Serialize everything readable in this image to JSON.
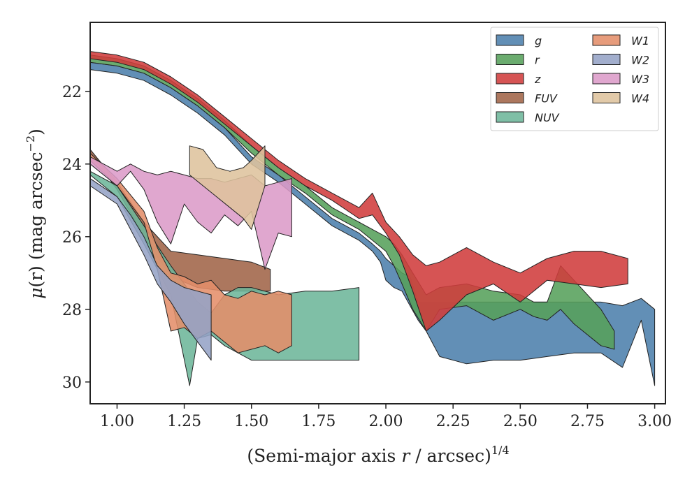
{
  "chart_data": {
    "type": "area",
    "title": "",
    "xlabel": {
      "main": "(Semi-major axis ",
      "var": "r",
      "unit": " / arcsec)",
      "sup": "1/4"
    },
    "ylabel": {
      "mu": "μ",
      "main": "(r) (mag arcsec",
      "sup": "−2",
      "close": ")"
    },
    "xlim": [
      0.9,
      3.04
    ],
    "ylim": [
      30.6,
      20.1
    ],
    "y_inverted": true,
    "xticks": [
      1.0,
      1.25,
      1.5,
      1.75,
      2.0,
      2.25,
      2.5,
      2.75,
      3.0
    ],
    "xtick_labels": [
      "1.00",
      "1.25",
      "1.50",
      "1.75",
      "2.00",
      "2.25",
      "2.50",
      "2.75",
      "3.00"
    ],
    "yticks": [
      22,
      24,
      26,
      28,
      30
    ],
    "ytick_labels": [
      "22",
      "24",
      "26",
      "28",
      "30"
    ],
    "grid": false,
    "legend_placement": "top-right",
    "legend_columns": 2,
    "series": [
      {
        "name": "g",
        "color": "#4c7fac",
        "x": [
          0.9,
          1.0,
          1.1,
          1.2,
          1.3,
          1.4,
          1.5,
          1.6,
          1.7,
          1.8,
          1.9,
          1.95,
          1.98,
          2.0,
          2.03,
          2.06,
          2.09,
          2.12,
          2.15,
          2.2,
          2.3,
          2.4,
          2.5,
          2.6,
          2.7,
          2.8,
          2.88,
          2.95,
          3.0
        ],
        "y_upper": [
          21.2,
          21.3,
          21.5,
          21.9,
          22.4,
          23.0,
          23.8,
          24.3,
          24.9,
          25.5,
          25.9,
          26.2,
          26.4,
          26.6,
          26.8,
          27.0,
          27.1,
          27.8,
          27.8,
          27.8,
          27.8,
          27.8,
          27.8,
          27.8,
          27.8,
          27.8,
          27.9,
          27.7,
          28.0
        ],
        "y_lower": [
          21.4,
          21.5,
          21.7,
          22.1,
          22.6,
          23.2,
          24.0,
          24.5,
          25.1,
          25.7,
          26.1,
          26.4,
          26.7,
          27.2,
          27.4,
          27.5,
          27.9,
          28.3,
          28.6,
          29.3,
          29.5,
          29.4,
          29.4,
          29.3,
          29.2,
          29.2,
          29.6,
          28.3,
          30.1
        ]
      },
      {
        "name": "r",
        "color": "#56a15b",
        "x": [
          0.9,
          1.0,
          1.1,
          1.2,
          1.3,
          1.4,
          1.5,
          1.6,
          1.7,
          1.8,
          1.9,
          1.95,
          2.0,
          2.03,
          2.06,
          2.1,
          2.15,
          2.2,
          2.3,
          2.4,
          2.5,
          2.55,
          2.6,
          2.65,
          2.7,
          2.8,
          2.85
        ],
        "y_upper": [
          21.0,
          21.1,
          21.3,
          21.7,
          22.2,
          22.8,
          23.5,
          24.1,
          24.6,
          25.2,
          25.6,
          25.8,
          26.0,
          26.2,
          26.5,
          27.0,
          27.6,
          27.4,
          27.3,
          27.5,
          27.6,
          27.8,
          27.8,
          26.8,
          27.2,
          28.0,
          28.6
        ],
        "y_lower": [
          21.2,
          21.3,
          21.5,
          21.9,
          22.4,
          23.0,
          23.7,
          24.3,
          24.8,
          25.4,
          25.8,
          26.1,
          26.4,
          26.8,
          27.3,
          28.0,
          28.6,
          28.0,
          27.9,
          28.3,
          28.0,
          28.2,
          28.3,
          28.0,
          28.4,
          29.0,
          29.1
        ]
      },
      {
        "name": "z",
        "color": "#d03c3c",
        "x": [
          0.9,
          1.0,
          1.1,
          1.2,
          1.3,
          1.4,
          1.5,
          1.6,
          1.7,
          1.8,
          1.9,
          1.95,
          2.0,
          2.05,
          2.1,
          2.15,
          2.2,
          2.3,
          2.4,
          2.5,
          2.6,
          2.7,
          2.8,
          2.9
        ],
        "y_upper": [
          20.9,
          21.0,
          21.2,
          21.6,
          22.1,
          22.7,
          23.3,
          23.9,
          24.4,
          24.8,
          25.2,
          24.8,
          25.6,
          26.0,
          26.5,
          26.8,
          26.7,
          26.3,
          26.7,
          27.0,
          26.6,
          26.4,
          26.4,
          26.6
        ],
        "y_lower": [
          21.1,
          21.2,
          21.4,
          21.8,
          22.3,
          22.9,
          23.5,
          24.1,
          24.6,
          25.0,
          25.5,
          25.4,
          25.9,
          26.5,
          27.5,
          28.6,
          28.3,
          27.6,
          27.3,
          27.8,
          27.2,
          27.3,
          27.4,
          27.3
        ]
      },
      {
        "name": "FUV",
        "color": "#a06448",
        "x": [
          0.9,
          1.0,
          1.1,
          1.2,
          1.3,
          1.4,
          1.5,
          1.57
        ],
        "y_upper": [
          23.6,
          24.5,
          25.6,
          26.4,
          26.5,
          26.6,
          26.7,
          26.9
        ],
        "y_lower": [
          23.7,
          24.7,
          26.0,
          27.1,
          27.4,
          27.5,
          27.5,
          27.5
        ]
      },
      {
        "name": "NUV",
        "color": "#6db69a",
        "x": [
          0.9,
          1.0,
          1.1,
          1.2,
          1.27,
          1.3,
          1.35,
          1.4,
          1.45,
          1.5,
          1.6,
          1.7,
          1.8,
          1.9
        ],
        "y_upper": [
          24.2,
          24.6,
          25.7,
          26.8,
          27.5,
          27.8,
          28.1,
          27.6,
          27.4,
          27.4,
          27.6,
          27.5,
          27.5,
          27.4
        ],
        "y_lower": [
          24.3,
          24.9,
          26.2,
          27.6,
          30.1,
          28.8,
          28.7,
          29.0,
          29.2,
          29.4,
          29.4,
          29.4,
          29.4,
          29.4
        ]
      },
      {
        "name": "W1",
        "color": "#e48e6a",
        "x": [
          0.9,
          1.0,
          1.1,
          1.15,
          1.2,
          1.25,
          1.3,
          1.35,
          1.4,
          1.45,
          1.5,
          1.55,
          1.6,
          1.65
        ],
        "y_upper": [
          23.7,
          24.4,
          25.3,
          26.3,
          27.0,
          27.1,
          27.3,
          27.2,
          27.6,
          27.7,
          27.5,
          27.6,
          27.5,
          27.6
        ],
        "y_lower": [
          23.9,
          24.6,
          25.6,
          26.9,
          28.6,
          28.5,
          28.8,
          28.6,
          28.9,
          29.2,
          29.1,
          29.0,
          29.2,
          29.0
        ]
      },
      {
        "name": "W2",
        "color": "#95a3c6",
        "x": [
          0.9,
          1.0,
          1.05,
          1.1,
          1.15,
          1.2,
          1.25,
          1.3,
          1.35
        ],
        "y_upper": [
          24.4,
          24.9,
          25.4,
          26.0,
          26.8,
          27.2,
          27.4,
          27.5,
          27.6
        ],
        "y_lower": [
          24.6,
          25.1,
          25.8,
          26.5,
          27.3,
          27.8,
          28.4,
          28.9,
          29.4
        ]
      },
      {
        "name": "W3",
        "color": "#dc9bc8",
        "x": [
          0.9,
          1.0,
          1.05,
          1.1,
          1.15,
          1.2,
          1.25,
          1.3,
          1.35,
          1.4,
          1.45,
          1.5,
          1.55,
          1.6,
          1.65
        ],
        "y_upper": [
          23.8,
          24.2,
          24.0,
          24.2,
          24.3,
          24.2,
          24.3,
          24.4,
          24.4,
          24.5,
          24.4,
          24.3,
          24.6,
          24.5,
          24.4
        ],
        "y_lower": [
          24.0,
          24.6,
          24.2,
          24.7,
          25.6,
          26.2,
          25.1,
          25.6,
          25.9,
          25.4,
          25.7,
          25.3,
          26.9,
          25.9,
          26.0
        ]
      },
      {
        "name": "W4",
        "color": "#dec39d",
        "x": [
          1.27,
          1.32,
          1.37,
          1.42,
          1.47,
          1.5,
          1.55
        ],
        "y_upper": [
          23.5,
          23.6,
          24.1,
          24.2,
          24.1,
          23.9,
          23.5
        ],
        "y_lower": [
          24.3,
          24.6,
          24.9,
          25.2,
          25.5,
          25.8,
          24.6
        ]
      }
    ],
    "legend_order": [
      "g",
      "r",
      "z",
      "FUV",
      "NUV",
      "W1",
      "W2",
      "W3",
      "W4"
    ]
  }
}
